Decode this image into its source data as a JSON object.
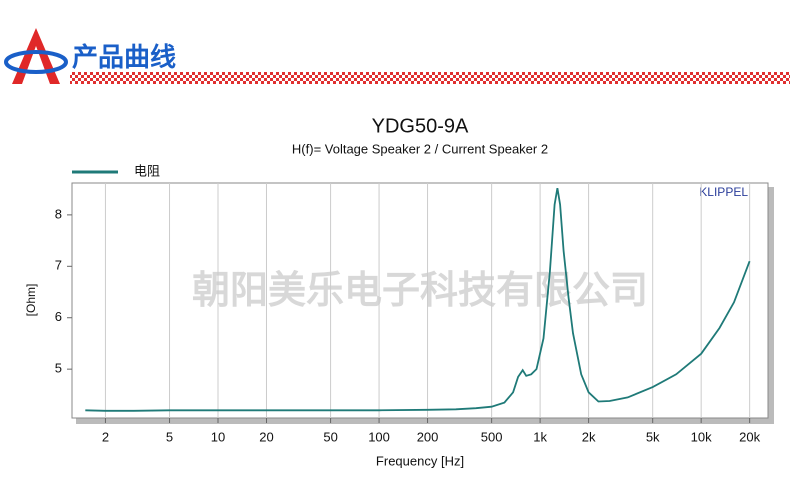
{
  "header": {
    "title": "产品曲线"
  },
  "chart_data": {
    "type": "line",
    "title": "YDG50-9A",
    "subtitle": "H(f)= Voltage Speaker 2 / Current Speaker 2",
    "x_label": "Frequency [Hz]",
    "y_label": "[Ohm]",
    "brand": "KLIPPEL",
    "watermark": "朝阳美乐电子科技有限公司",
    "x_log": true,
    "xlim": [
      1.24,
      26000
    ],
    "ylim": [
      4.05,
      8.62
    ],
    "xticks": [
      2,
      5,
      10,
      20,
      50,
      100,
      200,
      500,
      {
        "value": 1000,
        "label": "1k"
      },
      {
        "value": 2000,
        "label": "2k"
      },
      {
        "value": 5000,
        "label": "5k"
      },
      {
        "value": 10000,
        "label": "10k"
      },
      {
        "value": 20000,
        "label": "20k"
      }
    ],
    "yticks": [
      5,
      6,
      7,
      8
    ],
    "grid": true,
    "x": [
      1.5,
      2,
      3,
      5,
      10,
      20,
      50,
      100,
      200,
      300,
      400,
      500,
      600,
      680,
      730,
      780,
      820,
      880,
      950,
      1050,
      1150,
      1230,
      1280,
      1330,
      1400,
      1500,
      1600,
      1800,
      2000,
      2300,
      2700,
      3500,
      5000,
      7000,
      10000,
      13000,
      16000,
      20000
    ],
    "series": [
      {
        "name": "电阻",
        "color": "#1f7a78",
        "values": [
          4.2,
          4.19,
          4.19,
          4.2,
          4.2,
          4.2,
          4.2,
          4.2,
          4.21,
          4.22,
          4.24,
          4.27,
          4.35,
          4.55,
          4.85,
          4.98,
          4.87,
          4.9,
          5.0,
          5.6,
          6.9,
          8.2,
          8.52,
          8.2,
          7.3,
          6.4,
          5.7,
          4.9,
          4.55,
          4.37,
          4.38,
          4.45,
          4.65,
          4.9,
          5.3,
          5.8,
          6.3,
          7.1
        ]
      }
    ]
  }
}
